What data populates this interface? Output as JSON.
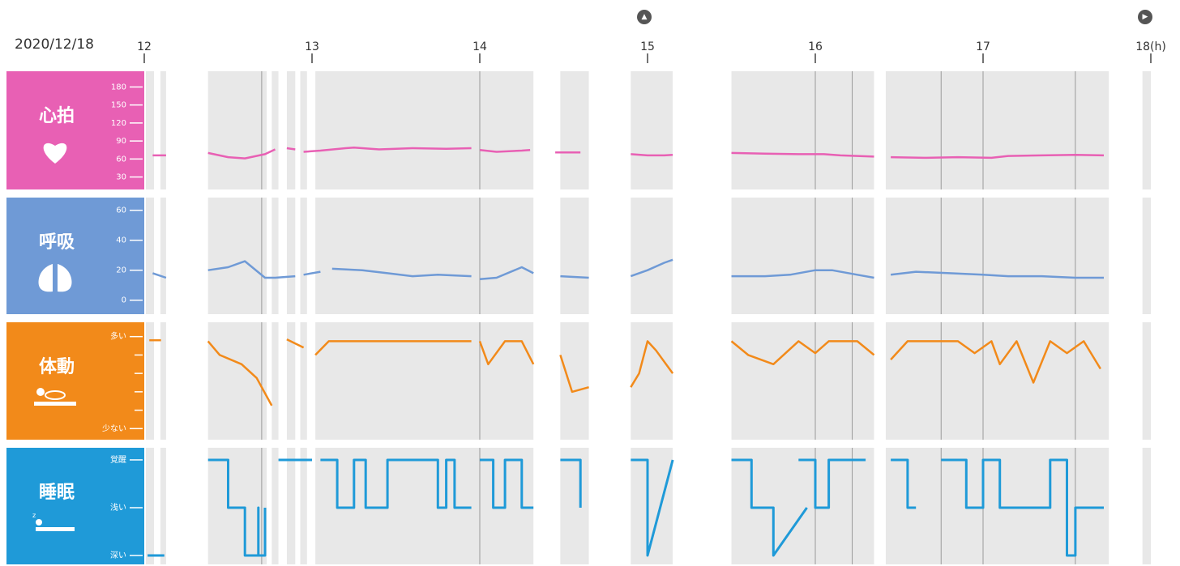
{
  "date": "2020/12/18",
  "nav": {
    "prev_icon": "chevron-up-circle-icon",
    "next_icon": "chevron-right-circle-icon"
  },
  "x_axis": {
    "ticks": [
      "12",
      "13",
      "14",
      "15",
      "16",
      "17",
      "18(h)"
    ],
    "range": [
      12,
      18
    ]
  },
  "colors": {
    "heart": "#e860b4",
    "resp": "#6f9ad6",
    "body": "#f28a1a",
    "sleep": "#1f9ad8",
    "plot_bg": "#e8e8e8"
  },
  "panels": {
    "heart": {
      "title": "心拍",
      "icon": "heart-icon",
      "yticks": [
        "180",
        "150",
        "120",
        "90",
        "60",
        "30"
      ]
    },
    "resp": {
      "title": "呼吸",
      "icon": "lungs-icon",
      "yticks": [
        "60",
        "40",
        "20",
        "0"
      ]
    },
    "body": {
      "title": "体動",
      "icon": "rolling-person-icon",
      "yticks": [
        "多い",
        "少ない"
      ]
    },
    "sleep": {
      "title": "睡眠",
      "icon": "sleeping-person-icon",
      "yticks": [
        "覚醒",
        "浅い",
        "深い"
      ]
    }
  },
  "chart_data": [
    {
      "type": "line",
      "panel": "heart",
      "title": "心拍",
      "ylim": [
        20,
        190
      ],
      "x": [
        12.05,
        12.13,
        null,
        12.38,
        12.5,
        12.6,
        12.72,
        12.78,
        null,
        12.85,
        12.9,
        null,
        12.95,
        13.05,
        13.2,
        13.25,
        13.4,
        13.6,
        13.8,
        13.95,
        null,
        14.0,
        14.1,
        14.25,
        14.3,
        null,
        14.45,
        14.6,
        null,
        14.9,
        15.0,
        15.1,
        15.15,
        null,
        15.5,
        15.7,
        15.9,
        16.05,
        16.15,
        16.25,
        16.35,
        null,
        16.45,
        16.65,
        16.85,
        17.05,
        17.15,
        17.35,
        17.55,
        17.72
      ],
      "y": [
        66,
        66,
        null,
        70,
        63,
        61,
        68,
        76,
        null,
        78,
        76,
        null,
        72,
        74,
        78,
        79,
        76,
        78,
        77,
        78,
        null,
        75,
        72,
        74,
        75,
        null,
        71,
        71,
        null,
        68,
        66,
        66,
        67,
        null,
        70,
        69,
        68,
        68,
        66,
        65,
        64,
        null,
        63,
        62,
        63,
        62,
        65,
        66,
        67,
        66
      ]
    },
    {
      "type": "line",
      "panel": "resp",
      "title": "呼吸",
      "ylim": [
        -5,
        62
      ],
      "x": [
        12.05,
        12.13,
        null,
        12.38,
        12.5,
        12.6,
        12.72,
        12.78,
        12.9,
        null,
        12.95,
        13.05,
        null,
        13.12,
        13.3,
        13.45,
        13.6,
        13.75,
        13.95,
        null,
        14.0,
        14.1,
        14.25,
        14.32,
        null,
        14.48,
        14.65,
        null,
        14.9,
        15.0,
        15.1,
        15.15,
        null,
        15.5,
        15.7,
        15.85,
        16.0,
        16.1,
        16.25,
        16.35,
        null,
        16.45,
        16.6,
        16.8,
        17.0,
        17.15,
        17.35,
        17.55,
        17.72
      ],
      "y": [
        18,
        15,
        null,
        20,
        22,
        26,
        15,
        15,
        16,
        null,
        17,
        19,
        null,
        21,
        20,
        18,
        16,
        17,
        16,
        null,
        14,
        15,
        22,
        18,
        null,
        16,
        15,
        null,
        16,
        20,
        25,
        27,
        null,
        16,
        16,
        17,
        20,
        20,
        17,
        15,
        null,
        17,
        19,
        18,
        17,
        16,
        16,
        15,
        15
      ]
    },
    {
      "type": "line",
      "panel": "body",
      "title": "体動",
      "ylim": [
        0,
        100
      ],
      "x": [
        12.03,
        12.1,
        null,
        12.38,
        12.45,
        12.58,
        12.67,
        12.76,
        null,
        12.85,
        12.95,
        null,
        13.02,
        13.1,
        13.5,
        13.95,
        null,
        14.0,
        14.05,
        14.15,
        14.25,
        14.32,
        null,
        14.48,
        14.55,
        14.65,
        null,
        14.9,
        14.95,
        15.0,
        15.05,
        15.15,
        null,
        15.5,
        15.6,
        15.75,
        15.9,
        16.0,
        16.08,
        16.15,
        16.25,
        16.35,
        null,
        16.45,
        16.55,
        16.65,
        16.85,
        16.95,
        17.05,
        17.1,
        17.2,
        17.3,
        17.4,
        17.5,
        17.6,
        17.7
      ],
      "y": [
        96,
        96,
        null,
        95,
        80,
        70,
        55,
        25,
        null,
        97,
        88,
        null,
        80,
        95,
        95,
        95,
        null,
        95,
        70,
        95,
        95,
        70,
        null,
        80,
        40,
        45,
        null,
        45,
        60,
        95,
        85,
        60,
        null,
        95,
        80,
        70,
        95,
        82,
        95,
        95,
        95,
        80,
        null,
        75,
        95,
        95,
        95,
        82,
        95,
        70,
        95,
        50,
        95,
        82,
        95,
        65
      ]
    },
    {
      "type": "line",
      "panel": "sleep",
      "title": "睡眠",
      "categories": [
        "深い",
        "浅い",
        "覚醒"
      ],
      "ylim": [
        0,
        2
      ],
      "x": [
        12.02,
        12.12,
        null,
        12.38,
        12.5,
        12.5,
        12.6,
        12.6,
        12.6,
        12.68,
        12.68,
        12.68,
        12.72,
        12.72,
        null,
        12.8,
        13.0,
        null,
        13.05,
        13.15,
        13.15,
        13.25,
        13.25,
        13.32,
        13.32,
        13.45,
        13.45,
        13.75,
        13.75,
        13.8,
        13.8,
        13.85,
        13.85,
        13.95,
        null,
        14.0,
        14.08,
        14.08,
        14.15,
        14.15,
        14.25,
        14.25,
        14.32,
        null,
        14.48,
        14.6,
        14.6,
        null,
        14.9,
        15.0,
        15.0,
        15.15,
        null,
        15.5,
        15.62,
        15.62,
        15.75,
        15.75,
        15.95,
        null,
        15.9,
        16.0,
        16.0,
        16.08,
        16.08,
        16.3,
        null,
        16.45,
        16.55,
        16.55,
        16.6,
        null,
        16.75,
        16.9,
        16.9,
        17.0,
        17.0,
        17.1,
        17.1,
        17.4,
        17.4,
        17.5,
        17.5,
        17.55,
        17.55,
        17.72
      ]
    },
    {
      "note_ignore": true
    }
  ]
}
